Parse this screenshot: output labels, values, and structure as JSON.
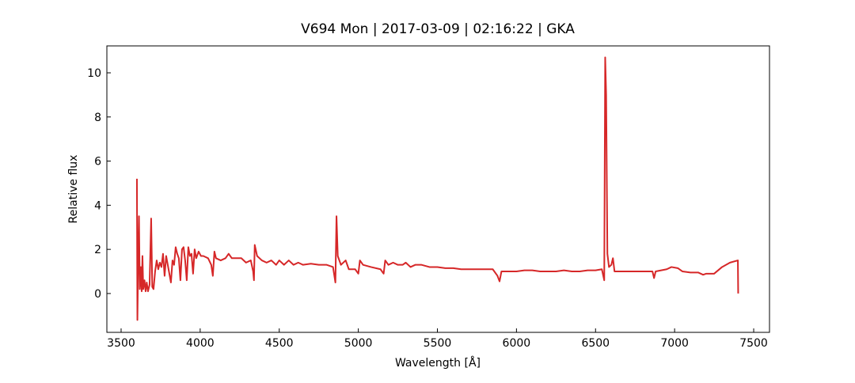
{
  "chart_data": {
    "type": "line",
    "title": "V694 Mon | 2017-03-09 | 02:16:22 | GKA",
    "x_label": "Wavelength [Å]",
    "y_label": "Relative flux",
    "xlim": [
      3410,
      7600
    ],
    "ylim": [
      -1.76,
      11.22
    ],
    "xticks": [
      3500,
      4000,
      4500,
      5000,
      5500,
      6000,
      6500,
      7000,
      7500
    ],
    "yticks": [
      0,
      2,
      4,
      6,
      8,
      10
    ],
    "grid": false,
    "series": [
      {
        "color": "#d62728",
        "x": [
          3600,
          3603,
          3608,
          3613,
          3618,
          3625,
          3630,
          3635,
          3640,
          3648,
          3655,
          3662,
          3670,
          3680,
          3690,
          3697,
          3705,
          3715,
          3725,
          3735,
          3745,
          3755,
          3765,
          3775,
          3785,
          3795,
          3805,
          3815,
          3825,
          3835,
          3845,
          3855,
          3865,
          3875,
          3885,
          3895,
          3905,
          3915,
          3925,
          3935,
          3945,
          3955,
          3965,
          3975,
          3990,
          4005,
          4020,
          4050,
          4070,
          4080,
          4090,
          4100,
          4130,
          4160,
          4180,
          4200,
          4230,
          4260,
          4290,
          4320,
          4335,
          4340,
          4345,
          4360,
          4390,
          4420,
          4450,
          4480,
          4500,
          4530,
          4560,
          4590,
          4620,
          4650,
          4700,
          4750,
          4800,
          4840,
          4855,
          4862,
          4870,
          4890,
          4920,
          4940,
          4980,
          5000,
          5010,
          5030,
          5080,
          5140,
          5160,
          5170,
          5190,
          5220,
          5250,
          5280,
          5300,
          5330,
          5360,
          5400,
          5450,
          5500,
          5550,
          5600,
          5650,
          5700,
          5750,
          5800,
          5850,
          5880,
          5893,
          5905,
          5950,
          6000,
          6050,
          6100,
          6150,
          6200,
          6250,
          6300,
          6350,
          6400,
          6450,
          6500,
          6540,
          6555,
          6561,
          6567,
          6575,
          6585,
          6600,
          6610,
          6620,
          6650,
          6700,
          6750,
          6800,
          6860,
          6870,
          6880,
          6950,
          6980,
          7020,
          7050,
          7100,
          7150,
          7180,
          7200,
          7250,
          7300,
          7350,
          7400,
          7402
        ],
        "values": [
          5.2,
          -1.2,
          1.5,
          3.5,
          0.2,
          1.2,
          0.1,
          1.7,
          0.2,
          0.6,
          0.1,
          0.5,
          0.1,
          0.4,
          3.4,
          0.3,
          0.2,
          1.0,
          1.5,
          1.1,
          1.4,
          1.2,
          1.8,
          0.8,
          1.7,
          1.3,
          0.9,
          0.5,
          1.5,
          1.3,
          2.1,
          1.8,
          1.6,
          0.6,
          2.0,
          2.1,
          1.5,
          0.6,
          2.1,
          1.7,
          1.8,
          0.9,
          2.0,
          1.6,
          1.9,
          1.7,
          1.7,
          1.6,
          1.3,
          0.8,
          1.9,
          1.6,
          1.5,
          1.6,
          1.8,
          1.6,
          1.6,
          1.6,
          1.4,
          1.5,
          1.0,
          0.6,
          2.2,
          1.7,
          1.5,
          1.4,
          1.5,
          1.3,
          1.5,
          1.3,
          1.5,
          1.3,
          1.4,
          1.3,
          1.35,
          1.3,
          1.3,
          1.2,
          0.5,
          3.5,
          1.7,
          1.3,
          1.5,
          1.1,
          1.1,
          0.9,
          1.5,
          1.3,
          1.2,
          1.1,
          0.9,
          1.5,
          1.3,
          1.4,
          1.3,
          1.3,
          1.4,
          1.2,
          1.3,
          1.3,
          1.2,
          1.2,
          1.15,
          1.15,
          1.1,
          1.1,
          1.1,
          1.1,
          1.1,
          0.8,
          0.55,
          1.0,
          1.0,
          1.0,
          1.05,
          1.05,
          1.0,
          1.0,
          1.0,
          1.05,
          1.0,
          1.0,
          1.05,
          1.05,
          1.1,
          0.6,
          10.7,
          9.0,
          1.8,
          1.2,
          1.3,
          1.6,
          1.0,
          1.0,
          1.0,
          1.0,
          1.0,
          1.0,
          0.7,
          1.0,
          1.1,
          1.2,
          1.15,
          1.0,
          0.95,
          0.95,
          0.85,
          0.9,
          0.9,
          1.2,
          1.4,
          1.5,
          0.0
        ]
      }
    ]
  }
}
